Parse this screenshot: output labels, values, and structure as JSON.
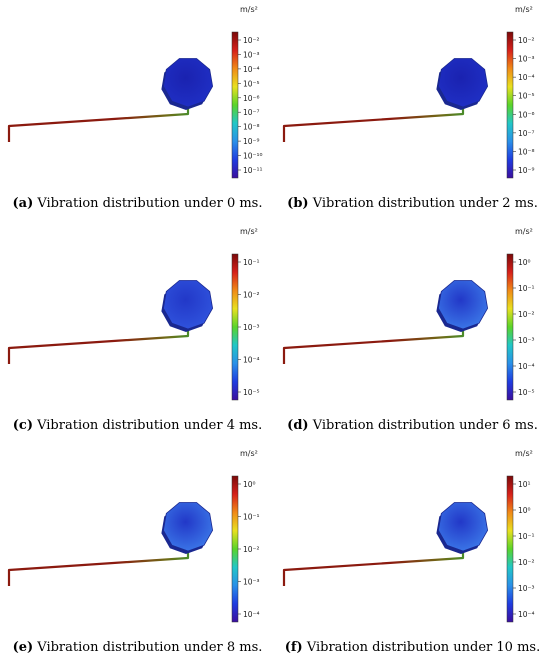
{
  "unit_label": "m/s²",
  "colors": {
    "wire_dark": "#8b1a0f",
    "wire_mid": "#6f6b17",
    "wire_green": "#4b8b2a",
    "octagon_deep": "#1f2fc4",
    "octagon_mid": "#2f52dc",
    "octagon_light": "#3a74e6",
    "octagon_edge": "#1a2890",
    "colormap": [
      "#3b0f9e",
      "#1f3ce0",
      "#2a90e8",
      "#22c7c7",
      "#5ad42a",
      "#e8e020",
      "#f08a18",
      "#d6201a",
      "#7a0a0a"
    ]
  },
  "panels": [
    {
      "id": "a",
      "label": "(a)",
      "caption": "Vibration distribution under 0 ms.",
      "time_ms": 0,
      "colorbar_ticks": [
        "10⁻²",
        "10⁻³",
        "10⁻⁴",
        "10⁻⁵",
        "10⁻⁶",
        "10⁻⁷",
        "10⁻⁸",
        "10⁻⁹",
        "10⁻¹⁰",
        "10⁻¹¹"
      ],
      "octagon_fill": "deep"
    },
    {
      "id": "b",
      "label": "(b)",
      "caption": "Vibration distribution under 2 ms.",
      "time_ms": 2,
      "colorbar_ticks": [
        "10⁻²",
        "10⁻³",
        "10⁻⁴",
        "10⁻⁵",
        "10⁻⁶",
        "10⁻⁷",
        "10⁻⁸",
        "10⁻⁹"
      ],
      "octagon_fill": "deep"
    },
    {
      "id": "c",
      "label": "(c)",
      "caption": "Vibration distribution under 4 ms.",
      "time_ms": 4,
      "colorbar_ticks": [
        "10⁻¹",
        "10⁻²",
        "10⁻³",
        "10⁻⁴",
        "10⁻⁵"
      ],
      "octagon_fill": "mid"
    },
    {
      "id": "d",
      "label": "(d)",
      "caption": "Vibration distribution under 6 ms.",
      "time_ms": 6,
      "colorbar_ticks": [
        "10⁰",
        "10⁻¹",
        "10⁻²",
        "10⁻³",
        "10⁻⁴",
        "10⁻⁵"
      ],
      "octagon_fill": "light"
    },
    {
      "id": "e",
      "label": "(e)",
      "caption": "Vibration distribution under 8 ms.",
      "time_ms": 8,
      "colorbar_ticks": [
        "10⁰",
        "10⁻¹",
        "10⁻²",
        "10⁻³",
        "10⁻⁴"
      ],
      "octagon_fill": "light"
    },
    {
      "id": "f",
      "label": "(f)",
      "caption": "Vibration distribution under 10 ms.",
      "time_ms": 10,
      "colorbar_ticks": [
        "10¹",
        "10⁰",
        "10⁻¹",
        "10⁻²",
        "10⁻³",
        "10⁻⁴"
      ],
      "octagon_fill": "light"
    }
  ]
}
